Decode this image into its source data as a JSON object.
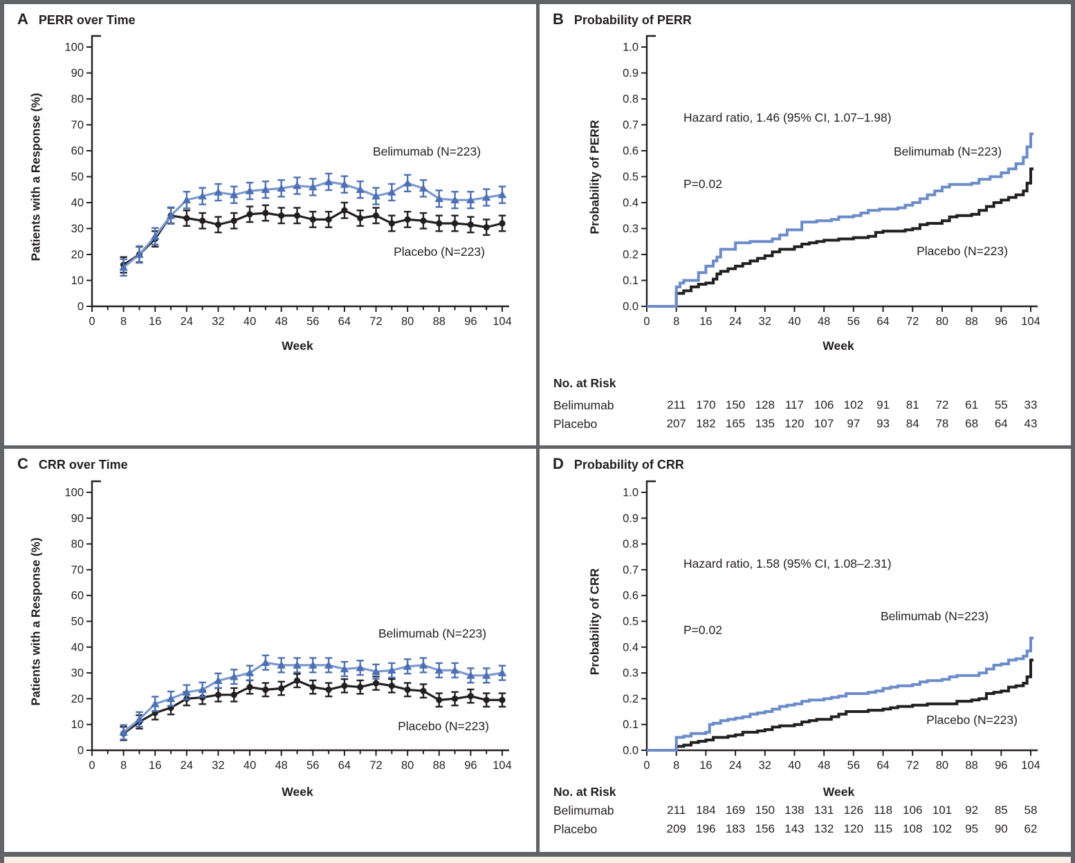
{
  "figure": {
    "text_color": "#231f20",
    "border_color": "#626366",
    "caption_strip_color": "#f7f1e5",
    "accent_blue": "#6b8cc9"
  },
  "panels": {
    "A": {
      "label": "A",
      "title": "PERR over Time"
    },
    "B": {
      "label": "B",
      "title": "Probability of PERR"
    },
    "C": {
      "label": "C",
      "title": "CRR over Time"
    },
    "D": {
      "label": "D",
      "title": "Probability of CRR"
    }
  },
  "chart_data": [
    {
      "id": "A",
      "type": "line",
      "title": "PERR over Time",
      "xlabel": "Week",
      "ylabel": "Patients with a Response (%)",
      "xlim": [
        0,
        104
      ],
      "ylim": [
        0,
        100
      ],
      "xtick_step": 8,
      "xtick_minor": 4,
      "ytick_step": 10,
      "ytick_decimals": 0,
      "x": [
        8,
        12,
        16,
        20,
        24,
        28,
        32,
        36,
        40,
        44,
        48,
        52,
        56,
        60,
        64,
        68,
        72,
        76,
        80,
        84,
        88,
        92,
        96,
        100,
        104
      ],
      "series": [
        {
          "name": "Belimumab (N=223)",
          "marker": "triangle",
          "err": 3.2,
          "color_line": "#7b99d0",
          "color_marker": "#4c70b3",
          "values": [
            15,
            20,
            27,
            35,
            41,
            42.5,
            44,
            43,
            44.5,
            45,
            45.5,
            46.5,
            46,
            48,
            47,
            45,
            42.5,
            44,
            47.5,
            45.5,
            41.5,
            41,
            41,
            42,
            43
          ]
        },
        {
          "name": "Placebo (N=223)",
          "marker": "circle",
          "err": 3.0,
          "color_line": "#221f20",
          "color_marker": "#221f20",
          "values": [
            16,
            20,
            26,
            35,
            34,
            33,
            31.5,
            33,
            35.5,
            36,
            35,
            35,
            33.5,
            33.5,
            37,
            34,
            35,
            32,
            33.5,
            33,
            32,
            32,
            31.5,
            30.5,
            32
          ]
        }
      ],
      "legend": [
        {
          "text": "Belimumab (N=223)",
          "pos": [
            611,
            219
          ]
        },
        {
          "text": "Placebo (N=223)",
          "pos": [
            629,
            364
          ]
        }
      ]
    },
    {
      "id": "B",
      "type": "step",
      "title": "Probability of PERR",
      "xlabel": "Week",
      "ylabel": "Probability of PERR",
      "xlim": [
        0,
        104
      ],
      "ylim": [
        0,
        1
      ],
      "xtick_step": 8,
      "ytick_step": 0.1,
      "ytick_decimals": 1,
      "annotations": [
        "Hazard ratio, 1.46 (95% CI, 1.07–1.98)",
        "P=0.02"
      ],
      "series": [
        {
          "name": "Belimumab (N=223)",
          "color_line": "#6b8cc9",
          "points": [
            [
              0,
              0
            ],
            [
              8,
              0.075
            ],
            [
              9,
              0.09
            ],
            [
              10,
              0.1
            ],
            [
              14,
              0.13
            ],
            [
              16,
              0.155
            ],
            [
              18,
              0.175
            ],
            [
              19,
              0.19
            ],
            [
              20,
              0.22
            ],
            [
              24,
              0.245
            ],
            [
              28,
              0.25
            ],
            [
              34,
              0.26
            ],
            [
              36,
              0.275
            ],
            [
              38,
              0.295
            ],
            [
              42,
              0.325
            ],
            [
              46,
              0.33
            ],
            [
              50,
              0.335
            ],
            [
              52,
              0.345
            ],
            [
              56,
              0.35
            ],
            [
              58,
              0.36
            ],
            [
              60,
              0.37
            ],
            [
              63,
              0.375
            ],
            [
              68,
              0.38
            ],
            [
              70,
              0.39
            ],
            [
              72,
              0.4
            ],
            [
              74,
              0.415
            ],
            [
              76,
              0.43
            ],
            [
              78,
              0.445
            ],
            [
              80,
              0.46
            ],
            [
              82,
              0.47
            ],
            [
              88,
              0.475
            ],
            [
              90,
              0.49
            ],
            [
              93,
              0.5
            ],
            [
              96,
              0.515
            ],
            [
              98,
              0.53
            ],
            [
              100,
              0.55
            ],
            [
              102,
              0.575
            ],
            [
              103,
              0.615
            ],
            [
              104,
              0.665
            ]
          ]
        },
        {
          "name": "Placebo (N=223)",
          "color_line": "#221f20",
          "points": [
            [
              0,
              0
            ],
            [
              8,
              0.05
            ],
            [
              10,
              0.06
            ],
            [
              12,
              0.075
            ],
            [
              14,
              0.085
            ],
            [
              16,
              0.09
            ],
            [
              18,
              0.105
            ],
            [
              19,
              0.125
            ],
            [
              20,
              0.135
            ],
            [
              22,
              0.145
            ],
            [
              24,
              0.155
            ],
            [
              26,
              0.165
            ],
            [
              28,
              0.175
            ],
            [
              30,
              0.185
            ],
            [
              32,
              0.195
            ],
            [
              34,
              0.21
            ],
            [
              36,
              0.22
            ],
            [
              40,
              0.23
            ],
            [
              42,
              0.24
            ],
            [
              44,
              0.245
            ],
            [
              46,
              0.25
            ],
            [
              48,
              0.255
            ],
            [
              52,
              0.26
            ],
            [
              56,
              0.265
            ],
            [
              60,
              0.27
            ],
            [
              62,
              0.285
            ],
            [
              64,
              0.29
            ],
            [
              70,
              0.295
            ],
            [
              72,
              0.3
            ],
            [
              74,
              0.315
            ],
            [
              76,
              0.32
            ],
            [
              80,
              0.33
            ],
            [
              82,
              0.345
            ],
            [
              84,
              0.35
            ],
            [
              88,
              0.355
            ],
            [
              90,
              0.37
            ],
            [
              92,
              0.385
            ],
            [
              94,
              0.4
            ],
            [
              96,
              0.41
            ],
            [
              98,
              0.42
            ],
            [
              100,
              0.43
            ],
            [
              102,
              0.445
            ],
            [
              103,
              0.475
            ],
            [
              104,
              0.53
            ]
          ]
        }
      ],
      "legend": [
        {
          "text": "Belimumab (N=223)",
          "pos": [
            590,
            219
          ]
        },
        {
          "text": "Placebo (N=223)",
          "pos": [
            611,
            363
          ]
        }
      ],
      "risk_table": {
        "header": "No. at Risk",
        "weeks": [
          8,
          16,
          24,
          32,
          40,
          48,
          56,
          64,
          72,
          80,
          88,
          96,
          104
        ],
        "rows": [
          {
            "label": "Belimumab",
            "values": [
              211,
              170,
              150,
              128,
              117,
              106,
              102,
              91,
              81,
              72,
              61,
              55,
              33
            ]
          },
          {
            "label": "Placebo",
            "values": [
              207,
              182,
              165,
              135,
              120,
              107,
              97,
              93,
              84,
              78,
              68,
              64,
              43
            ]
          }
        ]
      }
    },
    {
      "id": "C",
      "type": "line",
      "title": "CRR over Time",
      "xlabel": "Week",
      "ylabel": "Patients with a Response (%)",
      "xlim": [
        0,
        104
      ],
      "ylim": [
        0,
        100
      ],
      "xtick_step": 8,
      "xtick_minor": 4,
      "ytick_step": 10,
      "ytick_decimals": 0,
      "x": [
        8,
        12,
        16,
        20,
        24,
        28,
        32,
        36,
        40,
        44,
        48,
        52,
        56,
        60,
        64,
        68,
        72,
        76,
        80,
        84,
        88,
        92,
        96,
        100,
        104
      ],
      "series": [
        {
          "name": "Belimumab (N=223)",
          "marker": "triangle",
          "err": 2.8,
          "color_line": "#7b99d0",
          "color_marker": "#4c70b3",
          "values": [
            7,
            12,
            18,
            20,
            22.5,
            23.5,
            27,
            28.5,
            30,
            34,
            33,
            33,
            33,
            33,
            31.5,
            32,
            30.5,
            31,
            32.5,
            33,
            31,
            31,
            29,
            29,
            30
          ]
        },
        {
          "name": "Placebo (N=223)",
          "marker": "circle",
          "err": 2.6,
          "color_line": "#221f20",
          "color_marker": "#221f20",
          "values": [
            6.5,
            11,
            14.5,
            16.5,
            20,
            20.5,
            21.5,
            21.5,
            24.5,
            23.5,
            24,
            27,
            24.5,
            23.5,
            25,
            24.5,
            26,
            25,
            23.5,
            23,
            19.5,
            20,
            21,
            19.5,
            19.5
          ]
        }
      ],
      "legend": [
        {
          "text": "Belimumab (N=223)",
          "pos": [
            619,
            273
          ]
        },
        {
          "text": "Placebo (N=223)",
          "pos": [
            635,
            407
          ]
        }
      ]
    },
    {
      "id": "D",
      "type": "step",
      "title": "Probability of CRR",
      "xlabel": "Week",
      "ylabel": "Probability of CRR",
      "xlim": [
        0,
        104
      ],
      "ylim": [
        0,
        1
      ],
      "xtick_step": 8,
      "ytick_step": 0.1,
      "ytick_decimals": 1,
      "annotations": [
        "Hazard ratio, 1.58 (95% CI, 1.08–2.31)",
        "P=0.02"
      ],
      "series": [
        {
          "name": "Belimumab (N=223)",
          "color_line": "#6b8cc9",
          "points": [
            [
              0,
              0
            ],
            [
              8,
              0.05
            ],
            [
              10,
              0.055
            ],
            [
              12,
              0.065
            ],
            [
              16,
              0.07
            ],
            [
              17,
              0.1
            ],
            [
              18,
              0.105
            ],
            [
              20,
              0.115
            ],
            [
              22,
              0.12
            ],
            [
              24,
              0.125
            ],
            [
              26,
              0.13
            ],
            [
              28,
              0.14
            ],
            [
              30,
              0.145
            ],
            [
              32,
              0.15
            ],
            [
              34,
              0.16
            ],
            [
              36,
              0.17
            ],
            [
              38,
              0.175
            ],
            [
              40,
              0.18
            ],
            [
              42,
              0.19
            ],
            [
              44,
              0.195
            ],
            [
              48,
              0.2
            ],
            [
              50,
              0.205
            ],
            [
              52,
              0.21
            ],
            [
              54,
              0.22
            ],
            [
              60,
              0.225
            ],
            [
              62,
              0.23
            ],
            [
              64,
              0.24
            ],
            [
              66,
              0.245
            ],
            [
              68,
              0.25
            ],
            [
              72,
              0.255
            ],
            [
              74,
              0.265
            ],
            [
              76,
              0.27
            ],
            [
              80,
              0.275
            ],
            [
              82,
              0.285
            ],
            [
              84,
              0.29
            ],
            [
              90,
              0.3
            ],
            [
              92,
              0.315
            ],
            [
              94,
              0.33
            ],
            [
              96,
              0.335
            ],
            [
              98,
              0.35
            ],
            [
              100,
              0.355
            ],
            [
              102,
              0.365
            ],
            [
              103,
              0.385
            ],
            [
              104,
              0.435
            ]
          ]
        },
        {
          "name": "Placebo (N=223)",
          "color_line": "#221f20",
          "points": [
            [
              0,
              0
            ],
            [
              8,
              0.015
            ],
            [
              10,
              0.02
            ],
            [
              12,
              0.03
            ],
            [
              14,
              0.035
            ],
            [
              16,
              0.04
            ],
            [
              18,
              0.05
            ],
            [
              22,
              0.055
            ],
            [
              24,
              0.06
            ],
            [
              26,
              0.07
            ],
            [
              30,
              0.075
            ],
            [
              32,
              0.08
            ],
            [
              34,
              0.09
            ],
            [
              36,
              0.095
            ],
            [
              40,
              0.1
            ],
            [
              42,
              0.11
            ],
            [
              44,
              0.115
            ],
            [
              46,
              0.12
            ],
            [
              50,
              0.13
            ],
            [
              52,
              0.14
            ],
            [
              54,
              0.15
            ],
            [
              60,
              0.155
            ],
            [
              64,
              0.16
            ],
            [
              66,
              0.165
            ],
            [
              68,
              0.17
            ],
            [
              72,
              0.175
            ],
            [
              76,
              0.18
            ],
            [
              84,
              0.19
            ],
            [
              88,
              0.195
            ],
            [
              90,
              0.2
            ],
            [
              92,
              0.22
            ],
            [
              94,
              0.225
            ],
            [
              96,
              0.23
            ],
            [
              98,
              0.245
            ],
            [
              100,
              0.25
            ],
            [
              102,
              0.26
            ],
            [
              103,
              0.285
            ],
            [
              104,
              0.35
            ]
          ]
        }
      ],
      "legend": [
        {
          "text": "Belimumab (N=223)",
          "pos": [
            571,
            248
          ]
        },
        {
          "text": "Placebo (N=223)",
          "pos": [
            625,
            398
          ]
        }
      ],
      "risk_table": {
        "header": "No. at Risk",
        "weeks": [
          8,
          16,
          24,
          32,
          40,
          48,
          56,
          64,
          72,
          80,
          88,
          96,
          104
        ],
        "rows": [
          {
            "label": "Belimumab",
            "values": [
              211,
              184,
              169,
              150,
              138,
              131,
              126,
              118,
              106,
              101,
              92,
              85,
              58
            ]
          },
          {
            "label": "Placebo",
            "values": [
              209,
              196,
              183,
              156,
              143,
              132,
              120,
              115,
              108,
              102,
              95,
              90,
              62
            ]
          }
        ]
      }
    }
  ]
}
